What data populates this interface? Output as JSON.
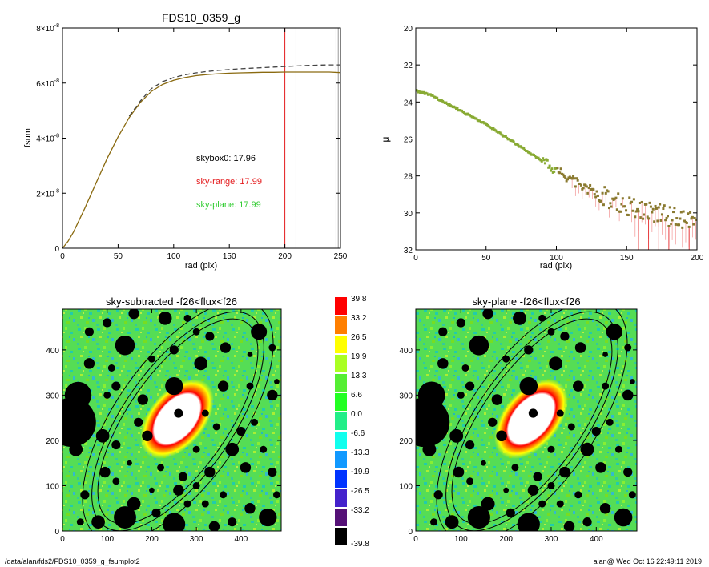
{
  "chart_data": [
    {
      "type": "line",
      "title": "FDS10_0359_g",
      "xlabel": "rad (pix)",
      "ylabel": "fsum",
      "xlim": [
        0,
        250
      ],
      "ylim": [
        0,
        8e-08
      ],
      "x_ticks": [
        0,
        50,
        100,
        150,
        200,
        250
      ],
      "y_ticks": [
        {
          "value": 0,
          "mantissa": "0",
          "exponent": ""
        },
        {
          "value": 2e-08,
          "mantissa": "2×10",
          "exponent": "-8"
        },
        {
          "value": 4e-08,
          "mantissa": "4×10",
          "exponent": "-8"
        },
        {
          "value": 6e-08,
          "mantissa": "6×10",
          "exponent": "-8"
        },
        {
          "value": 8e-08,
          "mantissa": "8×10",
          "exponent": "-8"
        }
      ],
      "vlines": [
        {
          "x": 200,
          "color": "#e41a1c"
        },
        {
          "x": 210,
          "color": "#999999"
        },
        {
          "x": 246,
          "color": "#999999"
        },
        {
          "x": 248,
          "color": "#999999"
        }
      ],
      "annotations": [
        {
          "text": "skybox0: 17.96",
          "color": "#000000"
        },
        {
          "text": "sky-range: 17.99",
          "color": "#e41a1c"
        },
        {
          "text": "sky-plane: 17.99",
          "color": "#33cc33"
        }
      ],
      "series": [
        {
          "style": "solid",
          "color": "#8a6a10",
          "x": [
            0,
            5,
            10,
            20,
            30,
            40,
            50,
            60,
            70,
            80,
            90,
            100,
            110,
            120,
            130,
            140,
            150,
            160,
            170,
            180,
            190,
            200,
            210,
            220,
            230,
            240,
            250
          ],
          "y": [
            0,
            2.5e-09,
            6e-09,
            1.45e-08,
            2.35e-08,
            3.25e-08,
            4.05e-08,
            4.75e-08,
            5.3e-08,
            5.7e-08,
            5.95e-08,
            6.1e-08,
            6.2e-08,
            6.27e-08,
            6.31e-08,
            6.34e-08,
            6.36e-08,
            6.37e-08,
            6.38e-08,
            6.39e-08,
            6.39e-08,
            6.4e-08,
            6.4e-08,
            6.4e-08,
            6.4e-08,
            6.4e-08,
            6.38e-08
          ]
        },
        {
          "style": "dashed",
          "color": "#444444",
          "x": [
            60,
            70,
            80,
            90,
            100,
            110,
            120,
            130,
            140,
            150,
            160,
            170,
            180,
            190,
            200,
            210,
            220,
            230,
            240,
            250
          ],
          "y": [
            4.8e-08,
            5.35e-08,
            5.8e-08,
            6.05e-08,
            6.2e-08,
            6.3e-08,
            6.37e-08,
            6.42e-08,
            6.46e-08,
            6.49e-08,
            6.52e-08,
            6.54e-08,
            6.56e-08,
            6.58e-08,
            6.6e-08,
            6.62e-08,
            6.64e-08,
            6.65e-08,
            6.66e-08,
            6.66e-08
          ]
        }
      ]
    },
    {
      "type": "scatter",
      "title": "",
      "xlabel": "rad (pix)",
      "ylabel": "μ",
      "xlim": [
        0,
        200
      ],
      "ylim": [
        32,
        20
      ],
      "x_ticks": [
        0,
        50,
        100,
        150,
        200
      ],
      "y_ticks": [
        20,
        22,
        24,
        26,
        28,
        30,
        32
      ],
      "series": [
        {
          "color": "#8a9a30",
          "x": [
            0,
            5,
            10,
            15,
            20,
            25,
            30,
            35,
            40,
            45,
            50,
            55,
            60,
            65,
            70,
            75,
            80,
            85,
            90,
            95,
            100,
            105,
            110,
            115,
            120,
            125,
            130,
            135,
            140,
            145,
            150,
            155,
            160,
            165,
            170,
            175,
            180,
            185,
            190,
            195,
            200
          ],
          "y": [
            23.4,
            23.5,
            23.6,
            23.8,
            24.0,
            24.2,
            24.4,
            24.6,
            24.8,
            25.0,
            25.2,
            25.45,
            25.7,
            25.95,
            26.2,
            26.45,
            26.7,
            26.95,
            27.2,
            27.45,
            27.7,
            27.95,
            28.15,
            28.4,
            28.6,
            28.8,
            29.0,
            29.15,
            29.3,
            29.45,
            29.6,
            29.7,
            29.8,
            29.9,
            30.0,
            30.1,
            30.2,
            30.3,
            30.4,
            30.5,
            30.6
          ]
        }
      ]
    },
    {
      "type": "heatmap",
      "title": "sky-subtracted -f26<flux<f26",
      "xlim": [
        0,
        490
      ],
      "ylim": [
        0,
        490
      ],
      "x_ticks": [
        0,
        100,
        200,
        300,
        400
      ],
      "y_ticks": [
        0,
        100,
        200,
        300,
        400
      ]
    },
    {
      "type": "heatmap",
      "title": "sky-plane -f26<flux<f26",
      "xlim": [
        0,
        490
      ],
      "ylim": [
        0,
        490
      ],
      "x_ticks": [
        0,
        100,
        200,
        300,
        400
      ],
      "y_ticks": [
        0,
        100,
        200,
        300,
        400
      ]
    }
  ],
  "colorbar": {
    "labels": [
      "39.8",
      "33.2",
      "26.5",
      "19.9",
      "13.3",
      "6.6",
      "0.0",
      "-6.6",
      "-13.3",
      "-19.9",
      "-26.5",
      "-33.2",
      "-39.8"
    ],
    "colors": [
      "#ff0000",
      "#ff7f00",
      "#ffff00",
      "#aaff22",
      "#55ee33",
      "#22ff22",
      "#22ee88",
      "#11ffee",
      "#1199ff",
      "#0033ff",
      "#4422cc",
      "#551177",
      "#000000"
    ]
  },
  "masks": {
    "blobs": [
      [
        20,
        240,
        55
      ],
      [
        140,
        410,
        22
      ],
      [
        160,
        480,
        12
      ],
      [
        60,
        440,
        10
      ],
      [
        100,
        460,
        10
      ],
      [
        230,
        470,
        15
      ],
      [
        280,
        470,
        8
      ],
      [
        300,
        440,
        8
      ],
      [
        330,
        430,
        10
      ],
      [
        365,
        405,
        12
      ],
      [
        440,
        440,
        18
      ],
      [
        470,
        405,
        8
      ],
      [
        60,
        370,
        12
      ],
      [
        110,
        360,
        8
      ],
      [
        120,
        320,
        10
      ],
      [
        100,
        300,
        8
      ],
      [
        90,
        210,
        15
      ],
      [
        120,
        190,
        10
      ],
      [
        95,
        130,
        12
      ],
      [
        120,
        110,
        8
      ],
      [
        50,
        80,
        10
      ],
      [
        80,
        20,
        15
      ],
      [
        40,
        20,
        8
      ],
      [
        160,
        60,
        15
      ],
      [
        140,
        30,
        25
      ],
      [
        210,
        40,
        10
      ],
      [
        250,
        15,
        25
      ],
      [
        280,
        60,
        8
      ],
      [
        340,
        10,
        12
      ],
      [
        380,
        20,
        10
      ],
      [
        420,
        50,
        12
      ],
      [
        460,
        30,
        20
      ],
      [
        480,
        80,
        8
      ],
      [
        410,
        140,
        12
      ],
      [
        450,
        180,
        8
      ],
      [
        380,
        180,
        15
      ],
      [
        400,
        220,
        10
      ],
      [
        430,
        240,
        8
      ],
      [
        470,
        300,
        12
      ],
      [
        420,
        320,
        8
      ],
      [
        360,
        320,
        12
      ],
      [
        310,
        370,
        15
      ],
      [
        250,
        400,
        10
      ],
      [
        200,
        380,
        8
      ],
      [
        180,
        290,
        12
      ],
      [
        170,
        240,
        10
      ],
      [
        320,
        260,
        8
      ],
      [
        345,
        230,
        8
      ],
      [
        300,
        180,
        8
      ],
      [
        330,
        130,
        12
      ],
      [
        270,
        120,
        10
      ],
      [
        220,
        140,
        8
      ],
      [
        260,
        90,
        12
      ],
      [
        300,
        100,
        8
      ],
      [
        360,
        80,
        8
      ],
      [
        200,
        90,
        6
      ],
      [
        480,
        330,
        6
      ],
      [
        320,
        60,
        8
      ],
      [
        150,
        150,
        6
      ],
      [
        420,
        390,
        6
      ],
      [
        250,
        320,
        20
      ],
      [
        260,
        260,
        10
      ],
      [
        190,
        210,
        12
      ],
      [
        35,
        300,
        30
      ],
      [
        30,
        180,
        15
      ],
      [
        470,
        130,
        10
      ]
    ]
  },
  "footer": {
    "path": "/data/alan/fds2/FDS10_0359_g_fsumplot2",
    "user_date": "alan@  Wed Oct 16 22:49:11 2019"
  }
}
